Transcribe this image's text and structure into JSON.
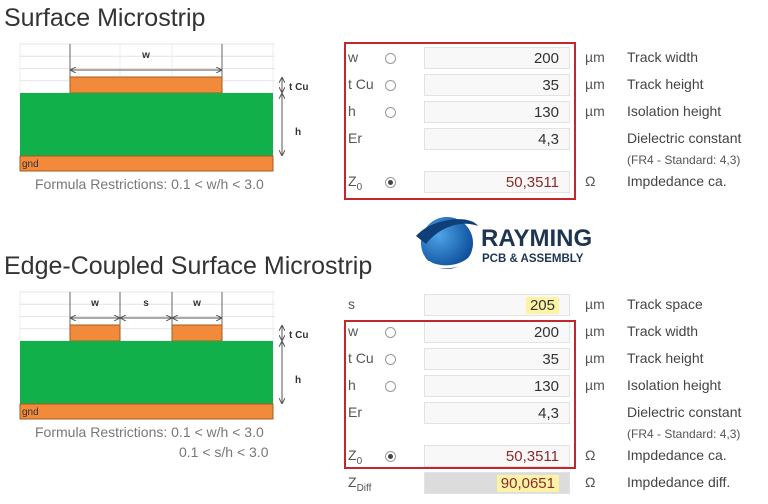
{
  "logo": {
    "name": "RAYMING",
    "tagline": "PCB & ASSEMBLY"
  },
  "sections": [
    {
      "title": "Surface Microstrip",
      "diagram": {
        "labels": [
          "w"
        ],
        "tcu": "t Cu",
        "h": "h",
        "gnd": "gnd"
      },
      "restrictions": [
        "Formula Restrictions:  0.1 < w/h < 3.0"
      ],
      "rows": [
        {
          "label": "w",
          "value": "200",
          "unit": "µm",
          "desc": "Track width"
        },
        {
          "label": "t Cu",
          "value": "35",
          "unit": "µm",
          "desc": "Track height"
        },
        {
          "label": "h",
          "value": "130",
          "unit": "µm",
          "desc": "Isolation height"
        },
        {
          "label": "Er",
          "value": "4,3",
          "desc": "Dielectric constant",
          "note": "(FR4 - Standard: 4,3)"
        },
        {
          "label": "Z",
          "sub": "0",
          "value": "50,3511",
          "unit": "Ω",
          "desc": "Impdedance ca."
        }
      ]
    },
    {
      "title": "Edge-Coupled Surface Microstrip",
      "diagram": {
        "labels": [
          "w",
          "s",
          "w"
        ],
        "tcu": "t Cu",
        "h": "h",
        "gnd": "gnd"
      },
      "restrictions": [
        "Formula Restrictions:  0.1 < w/h < 3.0",
        "0.1 < s/h < 3.0"
      ],
      "rows": [
        {
          "label": "s",
          "value": "205",
          "unit": "µm",
          "desc": "Track space"
        },
        {
          "label": "w",
          "value": "200",
          "unit": "µm",
          "desc": "Track width"
        },
        {
          "label": "t Cu",
          "value": "35",
          "unit": "µm",
          "desc": "Track height"
        },
        {
          "label": "h",
          "value": "130",
          "unit": "µm",
          "desc": "Isolation height"
        },
        {
          "label": "Er",
          "value": "4,3",
          "desc": "Dielectric constant",
          "note": "(FR4 - Standard: 4,3)"
        },
        {
          "label": "Z",
          "sub": "0",
          "value": "50,3511",
          "unit": "Ω",
          "desc": "Impdedance ca."
        },
        {
          "label": "Z",
          "sub": "Diff",
          "value": "90,0651",
          "unit": "Ω",
          "desc": "Impdedance diff."
        }
      ]
    }
  ]
}
